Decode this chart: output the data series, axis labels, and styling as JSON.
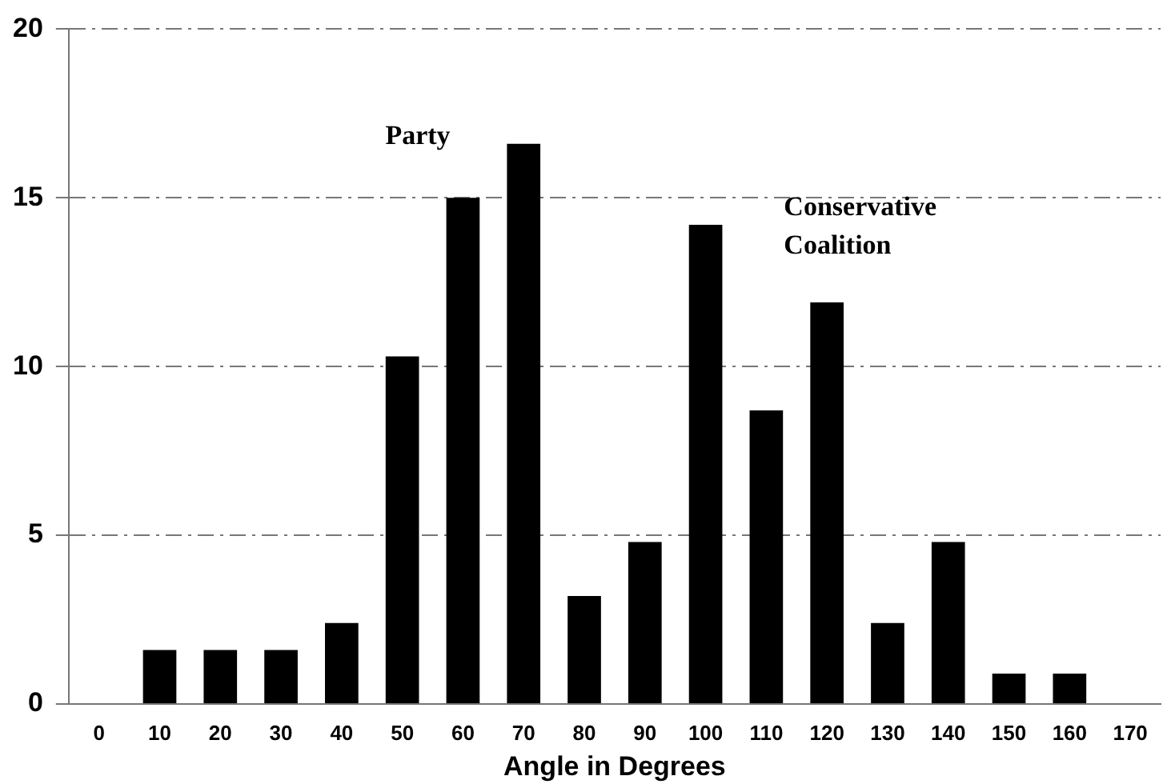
{
  "chart_data": {
    "type": "bar",
    "xlabel": "Angle in Degrees",
    "categories": [
      "0",
      "10",
      "20",
      "30",
      "40",
      "50",
      "60",
      "70",
      "80",
      "90",
      "100",
      "110",
      "120",
      "130",
      "140",
      "150",
      "160",
      "170"
    ],
    "values": [
      null,
      1.6,
      1.6,
      1.6,
      2.4,
      10.3,
      15.0,
      16.6,
      3.2,
      4.8,
      14.2,
      8.7,
      11.9,
      2.4,
      4.8,
      0.9,
      0.9,
      null
    ],
    "color": "#000000",
    "ylim": [
      0,
      20
    ],
    "yticks": [
      0,
      5,
      10,
      15,
      20
    ],
    "grid": "y",
    "annotations": [
      "Party",
      "Conservative\nCoalition"
    ]
  }
}
